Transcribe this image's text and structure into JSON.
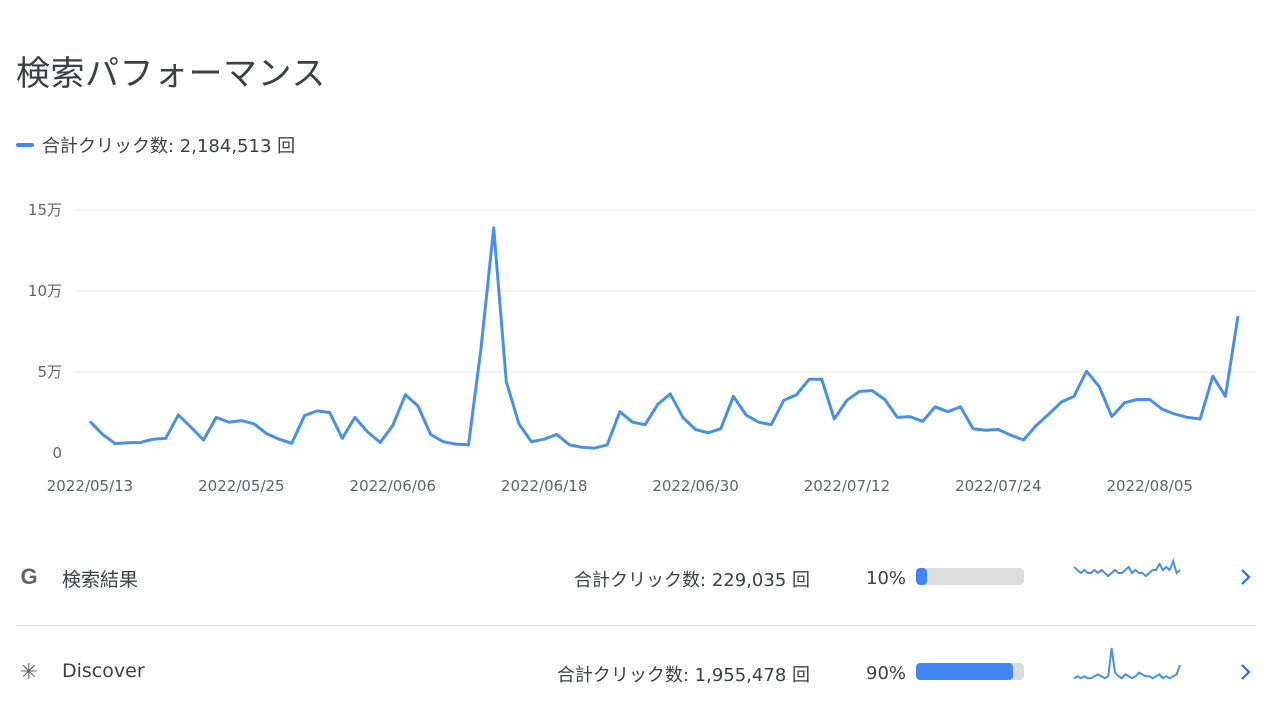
{
  "page": {
    "title": "検索パフォーマンス"
  },
  "legend": {
    "label": "合計クリック数: 2,184,513 回"
  },
  "colors": {
    "accent": "#4285f4",
    "line": "#4a90e2",
    "track": "#dcdcdc",
    "text": "#3c4043",
    "icon": "#5f6368"
  },
  "chart_data": {
    "type": "line",
    "title": "",
    "xlabel": "",
    "ylabel": "",
    "ylim": [
      0,
      150000
    ],
    "grid": true,
    "yticks": [
      {
        "value": 0,
        "label": "0"
      },
      {
        "value": 50000,
        "label": "5万"
      },
      {
        "value": 100000,
        "label": "10万"
      },
      {
        "value": 150000,
        "label": "15万"
      }
    ],
    "xticks": [
      "2022/05/13",
      "2022/05/25",
      "2022/06/06",
      "2022/06/18",
      "2022/06/30",
      "2022/07/12",
      "2022/07/24",
      "2022/08/05"
    ],
    "start_date": "2022/05/13",
    "series": [
      {
        "name": "合計クリック数",
        "values": [
          19500,
          11500,
          5800,
          6300,
          6500,
          8500,
          9000,
          23500,
          16000,
          8000,
          22000,
          19000,
          20000,
          18000,
          12000,
          8500,
          6000,
          23000,
          26000,
          25000,
          9000,
          22000,
          13000,
          6500,
          17000,
          36000,
          29000,
          11500,
          7000,
          5500,
          5000,
          65000,
          139000,
          44000,
          18000,
          7000,
          8500,
          11500,
          5000,
          3500,
          3000,
          5000,
          25500,
          19000,
          17500,
          30000,
          36500,
          22000,
          14500,
          12500,
          15000,
          35000,
          23500,
          19000,
          17500,
          32500,
          36000,
          45500,
          45500,
          21000,
          32500,
          38000,
          38500,
          33000,
          22000,
          22500,
          19500,
          28500,
          25500,
          28500,
          15000,
          14000,
          14500,
          11000,
          8000,
          17000,
          24000,
          31500,
          35000,
          50500,
          41000,
          22500,
          31000,
          33000,
          33000,
          27000,
          24000,
          22000,
          21000,
          47500,
          35000,
          84500
        ]
      }
    ]
  },
  "rows": [
    {
      "name": "検索結果",
      "icon": "google-g-icon",
      "icon_glyph": "G",
      "clicks": "合計クリック数: 229,035 回",
      "percent": "10%",
      "percent_value": 0.1,
      "spark": [
        6,
        5,
        4,
        5,
        4,
        4,
        5,
        4,
        5,
        4,
        3,
        4,
        5,
        4,
        4,
        5,
        6,
        4,
        5,
        4,
        4,
        3,
        4,
        5,
        5,
        7,
        5,
        6,
        5,
        8,
        4,
        5
      ]
    },
    {
      "name": "Discover",
      "icon": "asterisk-icon",
      "icon_glyph": "✳",
      "clicks": "合計クリック数: 1,955,478 回",
      "percent": "90%",
      "percent_value": 0.9,
      "spark": [
        2,
        3,
        2,
        3,
        2,
        2,
        3,
        4,
        3,
        2,
        3,
        18,
        5,
        3,
        2,
        4,
        3,
        2,
        3,
        5,
        4,
        3,
        3,
        2,
        3,
        4,
        2,
        3,
        2,
        3,
        4,
        9
      ]
    }
  ]
}
